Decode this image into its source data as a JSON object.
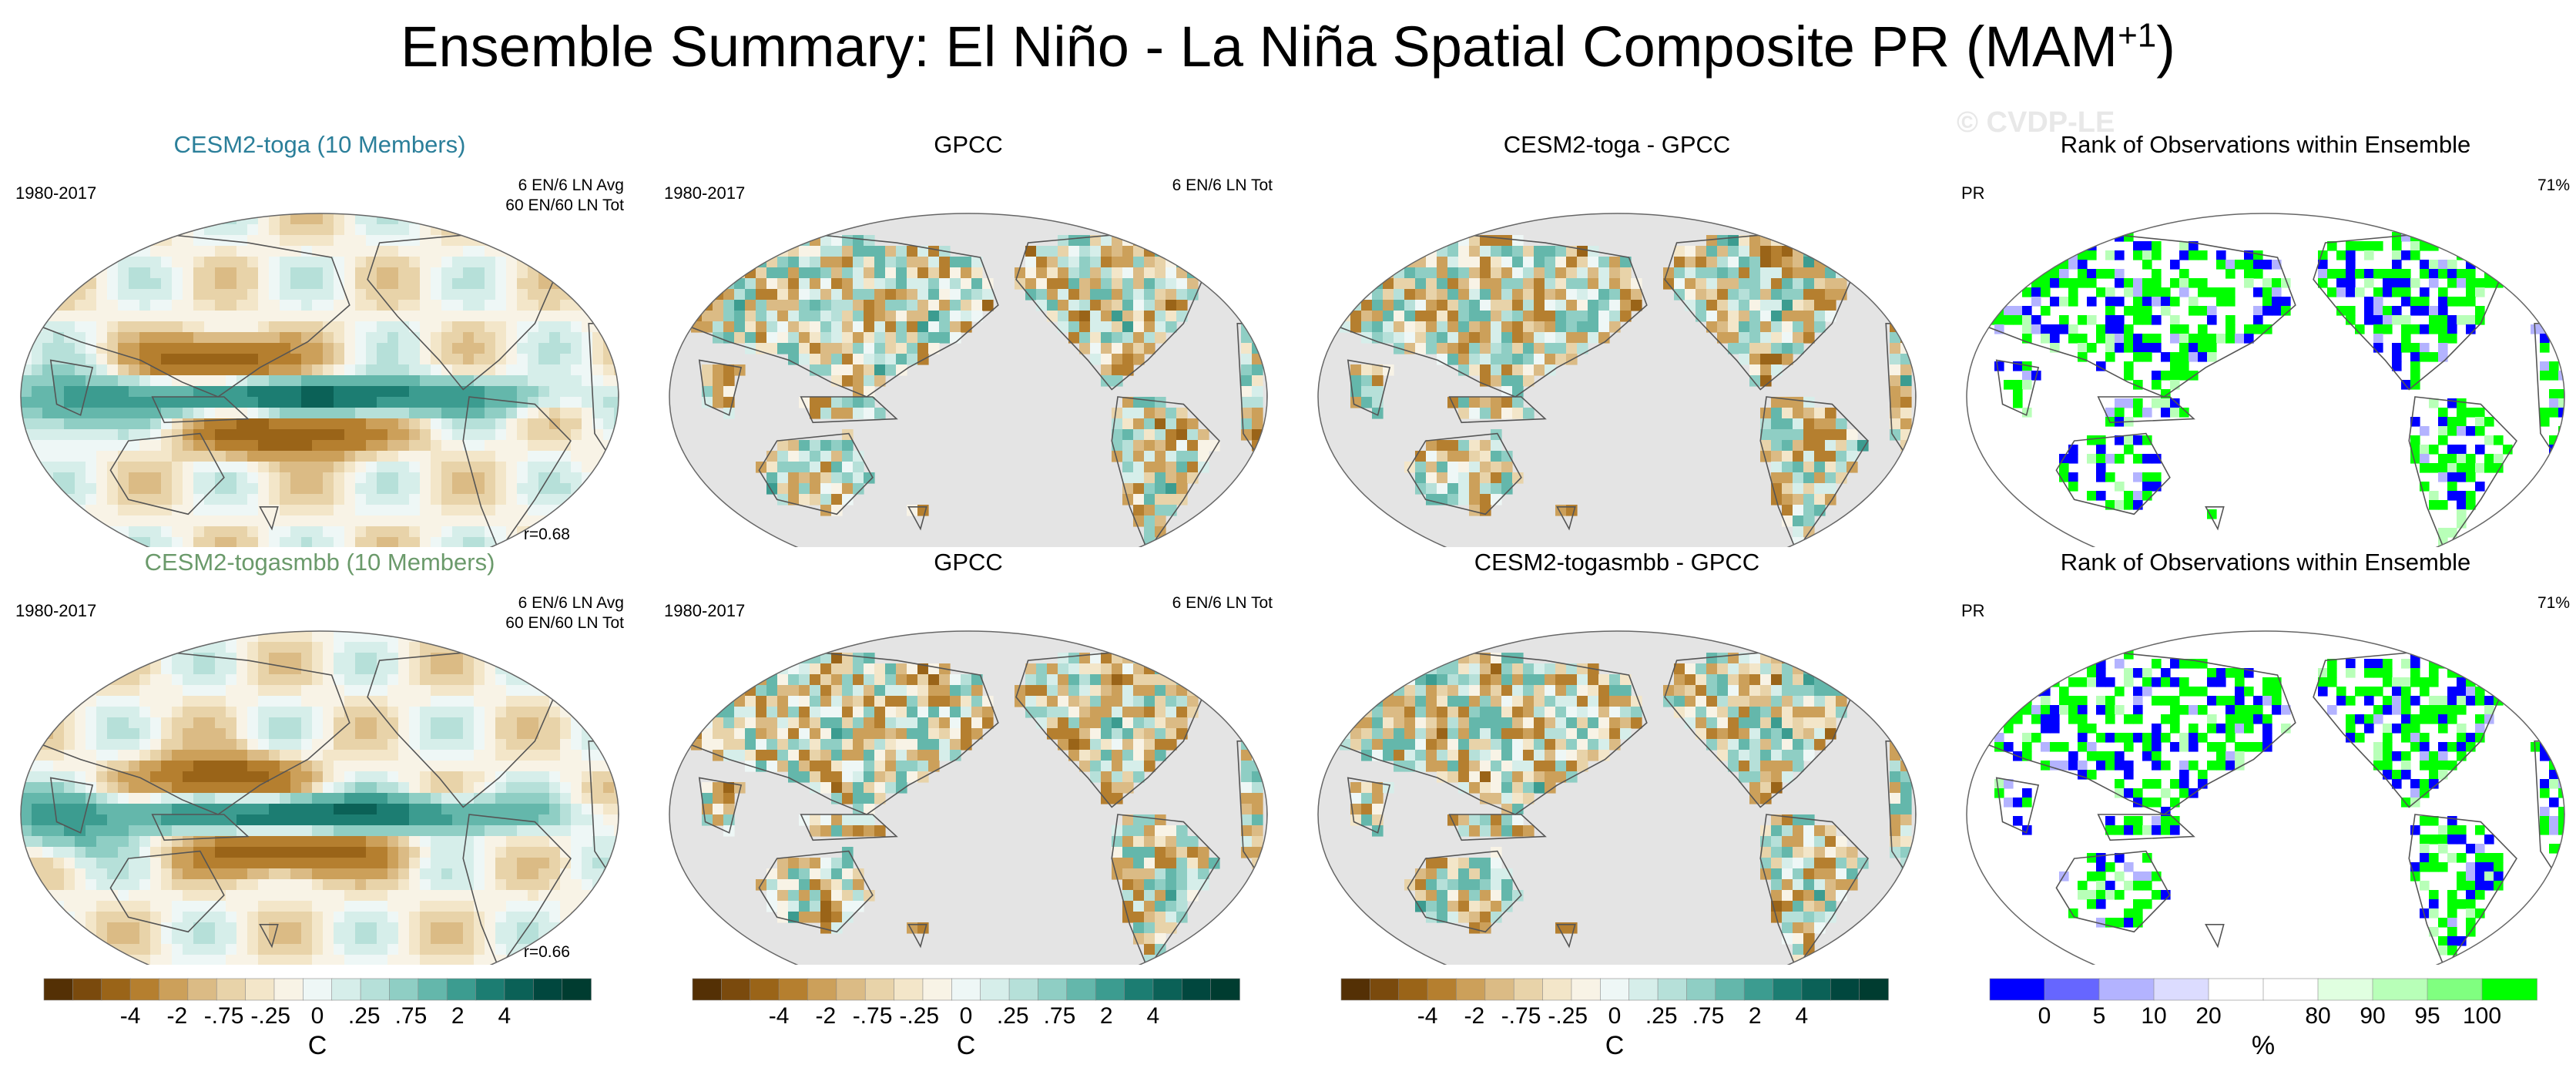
{
  "title_main": "Ensemble Summary: El Niño - La Niña Spatial Composite PR (MAM",
  "title_sup": "+1",
  "title_end": ")",
  "watermark": "© CVDP-LE",
  "colors": {
    "brown_green": [
      "#543005",
      "#7a4a0d",
      "#9a6418",
      "#b57f2f",
      "#cca05a",
      "#dbbb85",
      "#e8d3a9",
      "#f3e6c9",
      "#f8f3e6",
      "#eef7f6",
      "#d6eeea",
      "#b6e0d9",
      "#8fcec4",
      "#64b7ab",
      "#3c9c90",
      "#1c7d72",
      "#0b6157",
      "#01473e",
      "#003c30"
    ],
    "rank": [
      "#0000ff",
      "#6666ff",
      "#b3b3ff",
      "#dcdcff",
      "#ffffff",
      "#ffffff",
      "#e0ffe0",
      "#b8ffb8",
      "#80ff80",
      "#00ff00"
    ],
    "ocean_gray": "#e4e4e4",
    "coast": "#555555"
  },
  "panels": [
    {
      "title": "CESM2-toga (10 Members)",
      "title_color": "#2b7f9a",
      "left": "1980-2017",
      "right1": "6 EN/6 LN Avg",
      "right2": "60 EN/60 LN Tot",
      "corr": "r=0.68",
      "kind": "model"
    },
    {
      "title": "GPCC",
      "title_color": "#000000",
      "left": "1980-2017",
      "right1": "6 EN/6 LN Tot",
      "right2": "",
      "corr": "",
      "kind": "obs"
    },
    {
      "title": "CESM2-toga - GPCC",
      "title_color": "#000000",
      "left": "",
      "right1": "",
      "right2": "",
      "corr": "",
      "kind": "diff"
    },
    {
      "title": "Rank of Observations within Ensemble",
      "title_color": "#000000",
      "left": "PR",
      "right1": "71%",
      "right2": "",
      "corr": "",
      "kind": "rank"
    },
    {
      "title": "CESM2-togasmbb (10 Members)",
      "title_color": "#6b9a6b",
      "left": "1980-2017",
      "right1": "6 EN/6 LN Avg",
      "right2": "60 EN/60 LN Tot",
      "corr": "r=0.66",
      "kind": "model"
    },
    {
      "title": "GPCC",
      "title_color": "#000000",
      "left": "1980-2017",
      "right1": "6 EN/6 LN Tot",
      "right2": "",
      "corr": "",
      "kind": "obs"
    },
    {
      "title": "CESM2-togasmbb - GPCC",
      "title_color": "#000000",
      "left": "",
      "right1": "",
      "right2": "",
      "corr": "",
      "kind": "diff"
    },
    {
      "title": "Rank of Observations within Ensemble",
      "title_color": "#000000",
      "left": "PR",
      "right1": "71%",
      "right2": "",
      "corr": "",
      "kind": "rank"
    }
  ],
  "colorbars": [
    {
      "kind": "bg",
      "labels": [
        "-4",
        "-2",
        "-.75",
        "-.25",
        "0",
        ".25",
        ".75",
        "2",
        "4"
      ],
      "unit": "C"
    },
    {
      "kind": "bg",
      "labels": [
        "-4",
        "-2",
        "-.75",
        "-.25",
        "0",
        ".25",
        ".75",
        "2",
        "4"
      ],
      "unit": "C"
    },
    {
      "kind": "bg",
      "labels": [
        "-4",
        "-2",
        "-.75",
        "-.25",
        "0",
        ".25",
        ".75",
        "2",
        "4"
      ],
      "unit": "C"
    },
    {
      "kind": "rank",
      "labels": [
        "0",
        "5",
        "10",
        "20",
        "80",
        "90",
        "95",
        "100"
      ],
      "unit": "%"
    }
  ],
  "chart_data": {
    "type": "heatmap",
    "title": "Ensemble Summary: El Niño - La Niña Spatial Composite PR (MAM+1)",
    "colorbar_levels_precip": [
      -4,
      -2,
      -0.75,
      -0.25,
      0,
      0.25,
      0.75,
      2,
      4
    ],
    "colorbar_levels_rank": [
      0,
      5,
      10,
      20,
      80,
      90,
      95,
      100
    ],
    "correlations": {
      "CESM2-toga": 0.68,
      "CESM2-togasmbb": 0.66
    },
    "rank_percent_within_ensemble": [
      71,
      71
    ]
  }
}
